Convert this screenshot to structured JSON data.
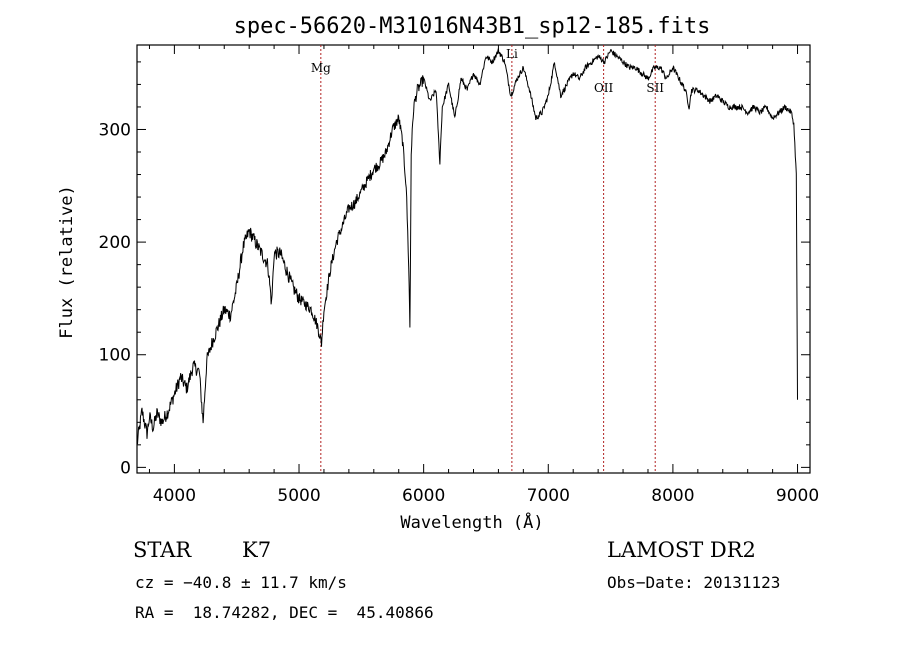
{
  "chart_data": {
    "type": "line",
    "title": "spec-56620-M31016N43B1_sp12-185.fits",
    "xlabel": "Wavelength (Å)",
    "ylabel": "Flux (relative)",
    "xlim": [
      3700,
      9100
    ],
    "ylim": [
      -5,
      375
    ],
    "x_ticks": [
      4000,
      5000,
      6000,
      7000,
      8000,
      9000
    ],
    "y_ticks": [
      0,
      100,
      200,
      300
    ],
    "grid": false,
    "line_color": "#000000",
    "marker_color": "#b22222",
    "series": [
      {
        "x": [
          3700,
          3740,
          3760,
          3780,
          3800,
          3830,
          3860,
          3900,
          3950,
          4000,
          4050,
          4100,
          4150,
          4200,
          4230,
          4260,
          4300,
          4350,
          4400,
          4450,
          4500,
          4550,
          4600,
          4650,
          4700,
          4750,
          4780,
          4800,
          4850,
          4900,
          4950,
          5000,
          5050,
          5100,
          5150,
          5180,
          5200,
          5250,
          5300,
          5350,
          5400,
          5450,
          5500,
          5550,
          5600,
          5650,
          5700,
          5750,
          5800,
          5830,
          5860,
          5880,
          5890,
          5900,
          5920,
          5950,
          6000,
          6050,
          6100,
          6130,
          6150,
          6200,
          6250,
          6300,
          6350,
          6400,
          6450,
          6500,
          6550,
          6600,
          6650,
          6700,
          6750,
          6800,
          6850,
          6900,
          6950,
          7000,
          7050,
          7100,
          7150,
          7200,
          7250,
          7300,
          7350,
          7400,
          7450,
          7500,
          7550,
          7600,
          7650,
          7700,
          7750,
          7800,
          7850,
          7900,
          7950,
          8000,
          8050,
          8100,
          8130,
          8150,
          8200,
          8250,
          8300,
          8350,
          8400,
          8450,
          8500,
          8550,
          8600,
          8650,
          8700,
          8750,
          8800,
          8850,
          8900,
          8950,
          8970,
          8990,
          9000
        ],
        "y": [
          20,
          50,
          40,
          30,
          45,
          35,
          48,
          40,
          50,
          65,
          80,
          70,
          90,
          85,
          40,
          95,
          110,
          125,
          140,
          135,
          160,
          195,
          210,
          200,
          190,
          180,
          145,
          190,
          190,
          175,
          160,
          150,
          145,
          140,
          125,
          110,
          140,
          175,
          200,
          215,
          230,
          235,
          245,
          255,
          265,
          270,
          280,
          300,
          310,
          290,
          250,
          180,
          125,
          280,
          320,
          335,
          345,
          325,
          335,
          270,
          320,
          340,
          310,
          345,
          335,
          350,
          340,
          365,
          360,
          370,
          360,
          330,
          345,
          355,
          335,
          310,
          315,
          330,
          360,
          330,
          340,
          350,
          345,
          355,
          360,
          365,
          360,
          370,
          365,
          360,
          355,
          355,
          350,
          345,
          355,
          355,
          345,
          355,
          345,
          335,
          320,
          335,
          335,
          330,
          325,
          330,
          325,
          320,
          320,
          320,
          315,
          320,
          315,
          320,
          310,
          315,
          320,
          315,
          305,
          260,
          60
        ]
      }
    ],
    "line_markers": [
      {
        "x": 5175,
        "label": "Mg"
      },
      {
        "x": 6708,
        "label": "Li"
      },
      {
        "x": 7444,
        "label": "OII"
      },
      {
        "x": 7858,
        "label": "SII"
      }
    ]
  },
  "info": {
    "object_class": "STAR",
    "subclass": "K7",
    "survey": "LAMOST DR2",
    "redshift": "cz = −40.8 ± 11.7 km/s",
    "obs_date": "Obs−Date: 20131123",
    "coords": "RA =  18.74282, DEC =  45.40866"
  }
}
